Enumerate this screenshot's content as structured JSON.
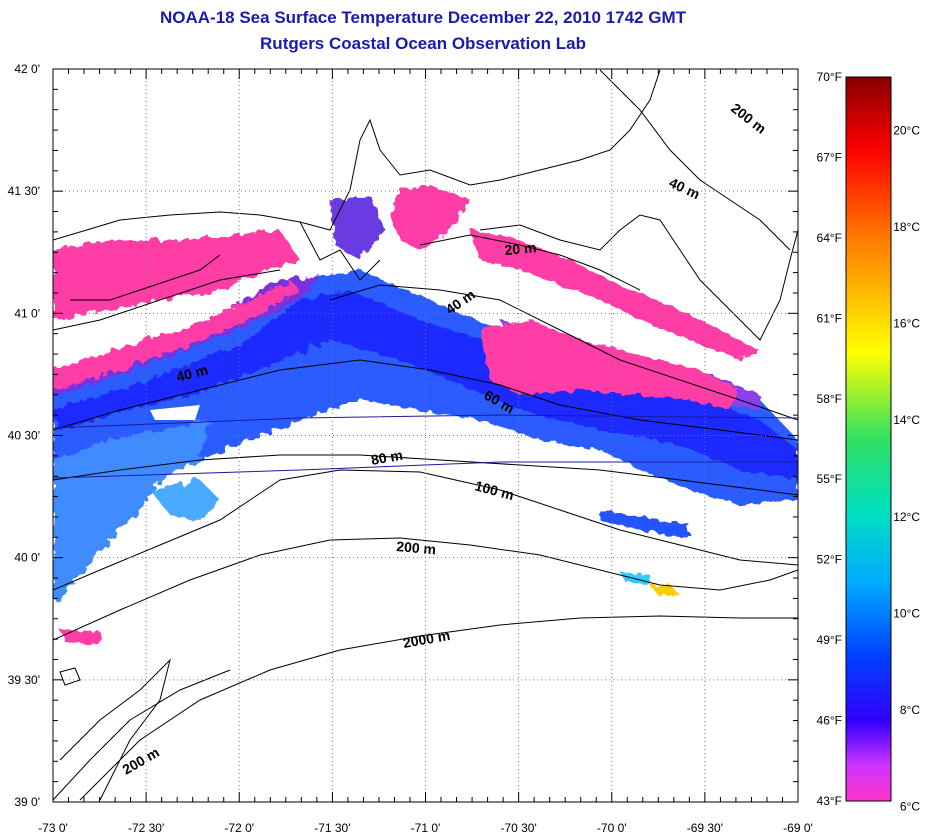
{
  "title": "NOAA-18 Sea Surface Temperature December 22, 2010 1742 GMT",
  "subtitle": "Rutgers Coastal Ocean Observation Lab",
  "lat_ticks": [
    "42 0'",
    "41 30'",
    "41 0'",
    "40 30'",
    "40 0'",
    "39 30'",
    "39 0'"
  ],
  "lon_ticks": [
    "-73 0'",
    "-72 30'",
    "-72 0'",
    "-71 30'",
    "-71 0'",
    "-70 30'",
    "-70 0'",
    "-69 30'",
    "-69 0'"
  ],
  "colorbar": {
    "fahrenheit_labels": [
      "70°F",
      "67°F",
      "64°F",
      "61°F",
      "58°F",
      "55°F",
      "52°F",
      "49°F",
      "46°F",
      "43°F"
    ],
    "celsius_labels": [
      "20°C",
      "18°C",
      "16°C",
      "14°C",
      "12°C",
      "10°C",
      "8°C",
      "6°C"
    ],
    "min_f": 43,
    "max_f": 70
  },
  "contour_labels": [
    "200 m",
    "40 m",
    "20 m",
    "40 m",
    "40 m",
    "60 m",
    "80 m",
    "100 m",
    "200 m",
    "2000 m",
    "200 m"
  ],
  "colors": {
    "title": "#1a1ab0",
    "cold_pink": "#ff3ca6",
    "purple": "#8a2be2",
    "blue": "#1e3cff",
    "mid_blue": "#2a7cff",
    "cyan_blue": "#3ab0ff"
  }
}
